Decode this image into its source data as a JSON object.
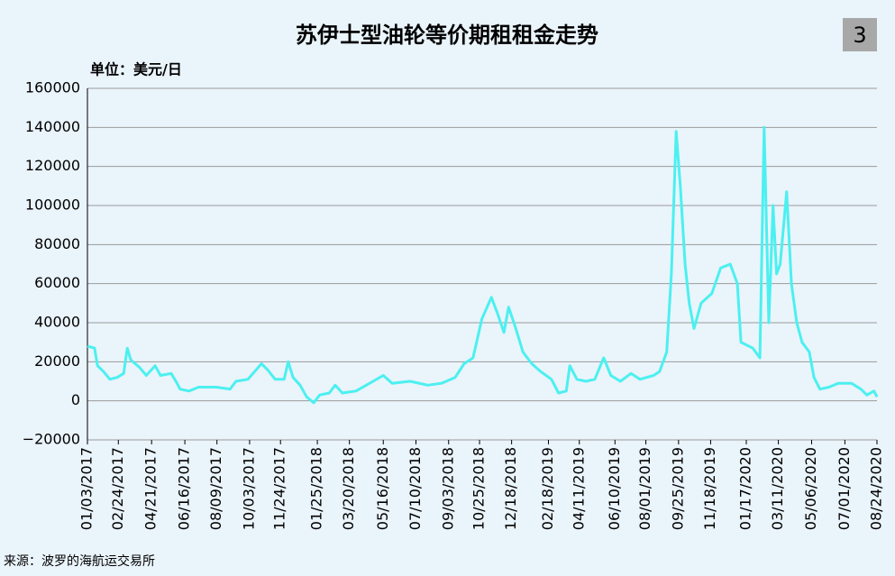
{
  "chart_data": {
    "type": "line",
    "title": "苏伊士型油轮等价期租租金走势",
    "badge": "3",
    "unit_label": "单位：美元/日",
    "source": "来源：波罗的海航运交易所",
    "xlim": [
      "01/03/2017",
      "08/24/2020"
    ],
    "xticks": [
      "01/03/2017",
      "02/24/2017",
      "04/21/2017",
      "06/16/2017",
      "08/09/2017",
      "10/03/2017",
      "11/24/2017",
      "01/25/2018",
      "03/20/2018",
      "05/16/2018",
      "07/10/2018",
      "09/03/2018",
      "10/25/2018",
      "12/18/2018",
      "02/18/2019",
      "04/11/2019",
      "06/10/2019",
      "08/01/2019",
      "09/25/2019",
      "11/18/2019",
      "01/17/2020",
      "03/11/2020",
      "05/06/2020",
      "07/01/2020",
      "08/24/2020"
    ],
    "ylim": [
      -20000,
      160000
    ],
    "yticks": [
      {
        "value": -20000,
        "label": "−20000"
      },
      0,
      20000,
      40000,
      60000,
      80000,
      100000,
      120000,
      140000,
      160000
    ],
    "grid": true,
    "x": [
      "01/03/2017",
      "01/15/2017",
      "01/20/2017",
      "01/30/2017",
      "02/10/2017",
      "02/22/2017",
      "03/05/2017",
      "03/11/2017",
      "03/17/2017",
      "04/01/2017",
      "04/12/2017",
      "04/27/2017",
      "05/06/2017",
      "05/24/2017",
      "06/01/2017",
      "06/08/2017",
      "06/23/2017",
      "07/09/2017",
      "08/08/2017",
      "08/31/2017",
      "09/10/2017",
      "09/30/2017",
      "10/23/2017",
      "11/02/2017",
      "11/15/2017",
      "11/30/2017",
      "12/07/2017",
      "12/15/2017",
      "12/27/2017",
      "01/07/2018",
      "01/19/2018",
      "01/29/2018",
      "02/14/2018",
      "02/24/2018",
      "03/08/2018",
      "03/31/2018",
      "04/23/2018",
      "05/16/2018",
      "05/31/2018",
      "06/30/2018",
      "07/30/2018",
      "08/22/2018",
      "09/14/2018",
      "09/29/2018",
      "10/14/2018",
      "10/29/2018",
      "11/14/2018",
      "11/24/2018",
      "12/05/2018",
      "12/13/2018",
      "12/24/2018",
      "01/06/2019",
      "01/21/2019",
      "02/05/2019",
      "02/23/2019",
      "03/07/2019",
      "03/20/2019",
      "03/26/2019",
      "04/07/2019",
      "04/22/2019",
      "05/07/2019",
      "05/22/2019",
      "06/03/2019",
      "06/19/2019",
      "07/07/2019",
      "07/22/2019",
      "08/14/2019",
      "08/24/2019",
      "09/05/2019",
      "09/13/2019",
      "09/21/2019",
      "09/28/2019",
      "10/06/2019",
      "10/13/2019",
      "10/21/2019",
      "11/02/2019",
      "11/20/2019",
      "12/05/2019",
      "12/21/2019",
      "01/02/2020",
      "01/08/2020",
      "01/28/2020",
      "02/09/2020",
      "02/16/2020",
      "02/24/2020",
      "03/02/2020",
      "03/08/2020",
      "03/14/2020",
      "03/25/2020",
      "04/02/2020",
      "04/11/2020",
      "04/20/2020",
      "05/02/2020",
      "05/10/2020",
      "05/20/2020",
      "06/04/2020",
      "06/20/2020",
      "07/12/2020",
      "07/28/2020",
      "08/07/2020",
      "08/19/2020",
      "08/24/2020"
    ],
    "series": [
      {
        "name": "苏伊士型油轮等价期租租金",
        "color": "#4cf0f0",
        "values": [
          28000,
          27000,
          18000,
          15000,
          11000,
          12000,
          14000,
          27000,
          21000,
          17000,
          13000,
          18000,
          13000,
          14000,
          10000,
          6000,
          5000,
          7000,
          7000,
          6000,
          10000,
          11000,
          19000,
          16000,
          11000,
          11000,
          20000,
          12000,
          8000,
          2000,
          -1000,
          3000,
          4000,
          8000,
          4000,
          5000,
          9000,
          13000,
          9000,
          10000,
          8000,
          9000,
          12000,
          19000,
          22000,
          42000,
          53000,
          45000,
          35000,
          48000,
          38000,
          25000,
          19000,
          15000,
          11000,
          4000,
          5000,
          18000,
          11000,
          10000,
          11000,
          22000,
          13000,
          10000,
          14000,
          11000,
          13000,
          15000,
          25000,
          65000,
          138000,
          110000,
          70000,
          50000,
          37000,
          50000,
          55000,
          68000,
          70000,
          60000,
          30000,
          27000,
          22000,
          140000,
          40000,
          100000,
          65000,
          70000,
          107000,
          60000,
          40000,
          30000,
          25000,
          12000,
          6000,
          7000,
          9000,
          9000,
          6000,
          3000,
          5000,
          2000
        ]
      }
    ]
  }
}
